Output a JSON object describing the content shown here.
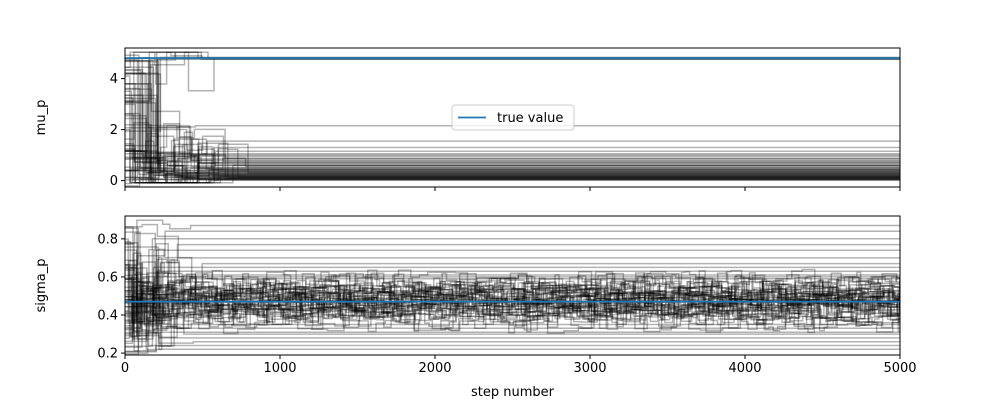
{
  "chart_data": [
    {
      "type": "line",
      "panel": "top",
      "ylabel": "mu_p",
      "xlabel": "",
      "xlim": [
        0,
        5000
      ],
      "ylim": [
        -0.25,
        5.2
      ],
      "x_ticks": [
        0,
        1000,
        2000,
        3000,
        4000,
        5000
      ],
      "y_ticks": [
        0,
        2,
        4
      ],
      "y_tick_labels": [
        "0",
        "2",
        "4"
      ],
      "show_x_tick_labels": false,
      "walker_color": "#000000",
      "walker_alpha": 0.3,
      "n_walkers": 64,
      "walker_final_values": [
        4.78,
        4.8,
        4.82,
        4.76,
        4.79,
        4.81,
        4.77,
        4.83,
        4.8,
        4.78,
        2.15,
        1.55,
        1.3,
        1.15,
        1.05,
        0.95,
        0.88,
        0.8,
        0.72,
        0.66,
        0.6,
        0.55,
        0.5,
        0.45,
        0.41,
        0.37,
        0.33,
        0.3,
        0.27,
        0.24,
        0.21,
        0.18,
        0.15,
        0.12,
        0.1,
        0.08,
        0.06,
        0.04,
        0.03,
        0.02,
        0.5,
        0.42,
        0.35,
        0.28,
        0.22,
        0.17,
        0.13,
        0.09,
        0.07,
        0.05,
        0.6,
        0.7,
        0.85,
        1.0,
        0.25,
        0.19,
        0.11,
        0.14,
        0.16,
        0.31,
        0.38,
        0.44,
        0.58,
        0.76
      ],
      "true_value": 4.8,
      "true_value_color": "#1f77b4",
      "legend": {
        "label": "true value",
        "placement": "center"
      }
    },
    {
      "type": "line",
      "panel": "bottom",
      "ylabel": "sigma_p",
      "xlabel": "step number",
      "xlim": [
        0,
        5000
      ],
      "ylim": [
        0.19,
        0.92
      ],
      "x_ticks": [
        0,
        1000,
        2000,
        3000,
        4000,
        5000
      ],
      "x_tick_labels": [
        "0",
        "1000",
        "2000",
        "3000",
        "4000",
        "5000"
      ],
      "y_ticks": [
        0.2,
        0.4,
        0.6,
        0.8
      ],
      "y_tick_labels": [
        "0.2",
        "0.4",
        "0.6",
        "0.8"
      ],
      "walker_color": "#000000",
      "walker_alpha": 0.3,
      "n_walkers": 64,
      "walker_final_values": [
        0.87,
        0.84,
        0.8,
        0.77,
        0.74,
        0.7,
        0.67,
        0.63,
        0.6,
        0.58,
        0.56,
        0.54,
        0.52,
        0.51,
        0.5,
        0.49,
        0.48,
        0.47,
        0.46,
        0.45,
        0.44,
        0.43,
        0.42,
        0.41,
        0.4,
        0.39,
        0.37,
        0.35,
        0.33,
        0.31,
        0.3,
        0.28,
        0.26,
        0.24,
        0.22,
        0.53,
        0.55,
        0.57,
        0.61,
        0.65,
        0.47,
        0.46,
        0.48,
        0.5,
        0.52,
        0.45,
        0.44,
        0.49,
        0.51,
        0.43,
        0.42,
        0.46,
        0.5,
        0.54,
        0.48,
        0.47,
        0.45,
        0.53,
        0.49,
        0.41,
        0.56,
        0.59,
        0.38,
        0.36
      ],
      "true_value": 0.47,
      "true_value_color": "#1f77b4"
    }
  ]
}
